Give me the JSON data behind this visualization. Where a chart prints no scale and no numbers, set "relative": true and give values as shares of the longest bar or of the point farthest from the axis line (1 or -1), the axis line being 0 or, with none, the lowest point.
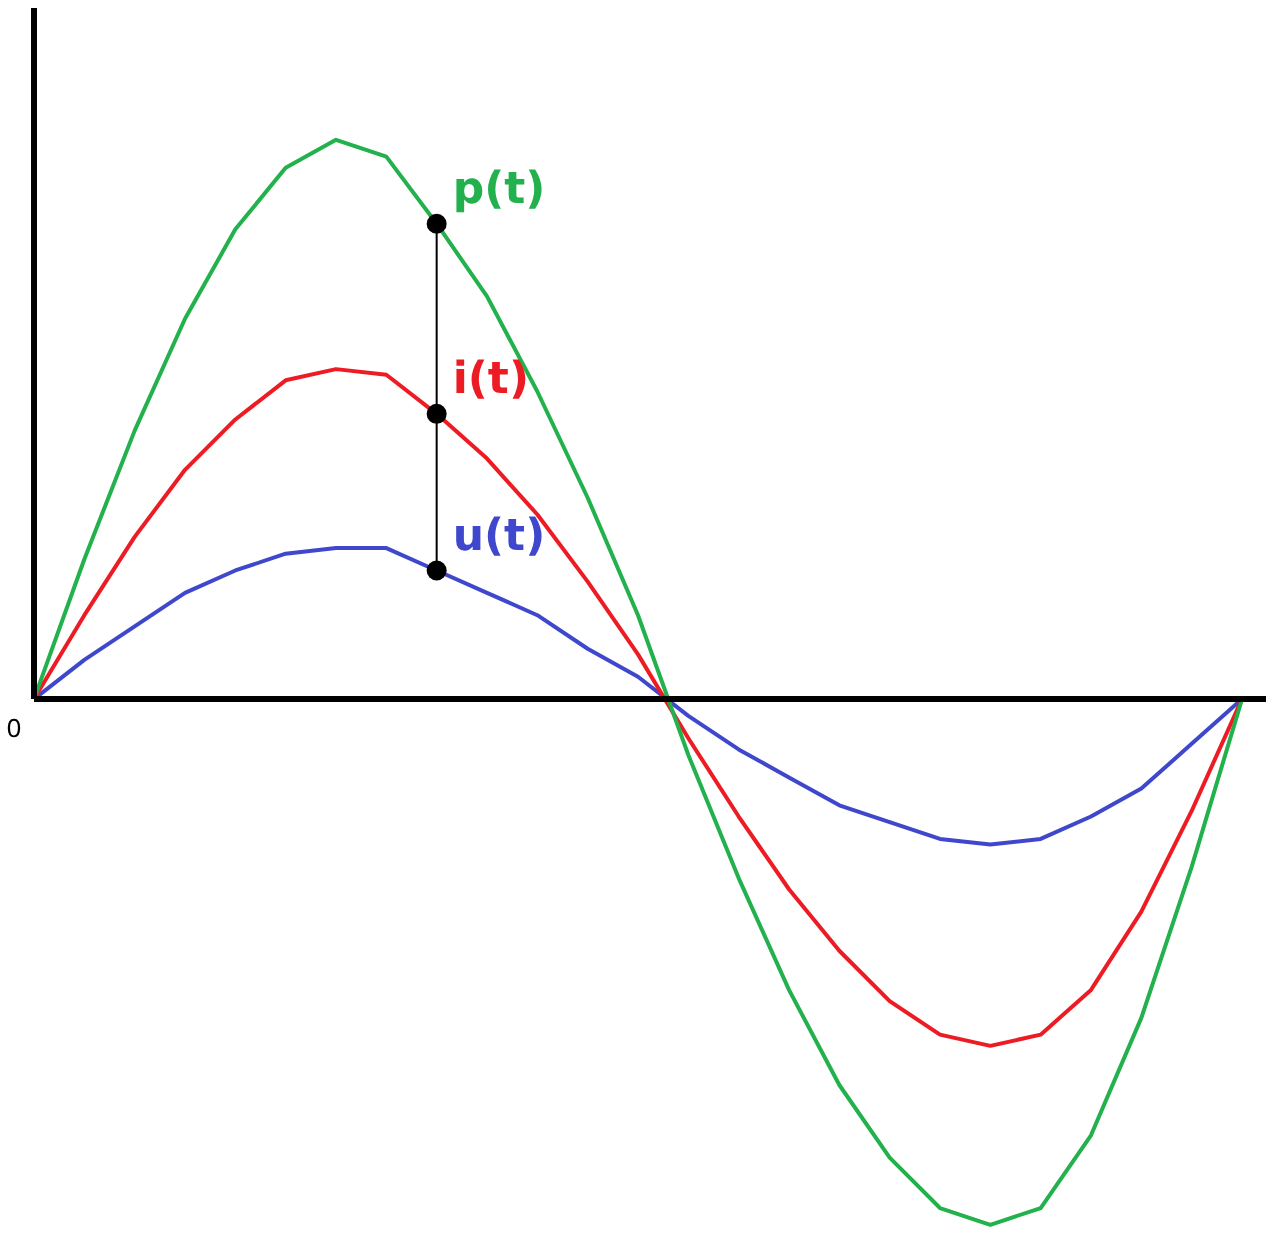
{
  "chart_data": {
    "type": "line",
    "relative": true,
    "legend": false,
    "marker": "none",
    "line_style": "solid",
    "categories": [
      null,
      null,
      null,
      null,
      null,
      null,
      null,
      null,
      null,
      null,
      null,
      null,
      null,
      null,
      null,
      null,
      null,
      null,
      null,
      null,
      null,
      null,
      null,
      null,
      null
    ],
    "annotations": [
      "0"
    ],
    "series": [
      {
        "name": "p(t)",
        "color": "#22b14c",
        "values": [
          0,
          0.25,
          0.48,
          0.68,
          0.84,
          0.95,
          1.0,
          0.97,
          0.85,
          0.72,
          0.55,
          0.36,
          0.15,
          -0.1,
          -0.32,
          -0.52,
          -0.69,
          -0.82,
          -0.91,
          -0.94,
          -0.91,
          -0.78,
          -0.57,
          -0.3,
          0
        ]
      },
      {
        "name": "i(t)",
        "color": "#ed1c24",
        "values": [
          0,
          0.15,
          0.29,
          0.41,
          0.5,
          0.57,
          0.59,
          0.58,
          0.51,
          0.43,
          0.33,
          0.21,
          0.08,
          -0.07,
          -0.21,
          -0.34,
          -0.45,
          -0.54,
          -0.6,
          -0.62,
          -0.6,
          -0.52,
          -0.38,
          -0.2,
          0
        ]
      },
      {
        "name": "u(t)",
        "color": "#3f48cc",
        "values": [
          0,
          0.07,
          0.13,
          0.19,
          0.23,
          0.26,
          0.27,
          0.27,
          0.23,
          0.19,
          0.15,
          0.09,
          0.04,
          -0.03,
          -0.09,
          -0.14,
          -0.19,
          -0.22,
          -0.25,
          -0.26,
          -0.25,
          -0.21,
          -0.16,
          -0.08,
          0
        ]
      }
    ]
  }
}
